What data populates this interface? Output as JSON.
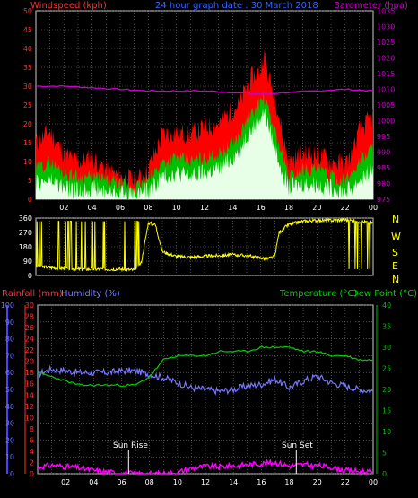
{
  "header": {
    "windspeed": "Windspeed (kph)",
    "title": "24 hour graph date : 30 March 2018",
    "barometer": "Barometer (hpa)"
  },
  "lower_header": {
    "rainfall": "Rainfall (mm)",
    "humidity": "Humidity (%)",
    "temperature": "Temperature (°C)",
    "dewpoint": "Dew Point (°C)"
  },
  "annotations": {
    "sunrise": "Sun Rise",
    "sunset": "Sun Set"
  },
  "compass": [
    "N",
    "W",
    "S",
    "E",
    "N"
  ],
  "colors": {
    "wind_gust": "#ff0000",
    "wind_avg": "#00c000",
    "wind_speed": "#e6ffe6",
    "barometer": "#cc00cc",
    "direction": "#ffff00",
    "humidity": "#7777ff",
    "temperature": "#00d000",
    "dewpoint": "#00d000",
    "rainfall": "#ff00ff",
    "axis_left": "#ff3030",
    "axis_right": "#cc00cc",
    "grid": "#777777"
  },
  "chart_data": [
    {
      "type": "line",
      "name": "wind",
      "x_ticks": [
        "02",
        "04",
        "06",
        "08",
        "10",
        "12",
        "14",
        "16",
        "18",
        "20",
        "22",
        "00"
      ],
      "y_left": {
        "label": "Windspeed (kph)",
        "range": [
          0,
          50
        ],
        "ticks": [
          0,
          5,
          10,
          15,
          20,
          25,
          30,
          35,
          40,
          45,
          50
        ]
      },
      "y_right": {
        "label": "Barometer (hpa)",
        "range": [
          975,
          1035
        ],
        "ticks": [
          975,
          980,
          985,
          990,
          995,
          1000,
          1005,
          1010,
          1015,
          1020,
          1025,
          1030,
          1035
        ]
      },
      "series": [
        {
          "name": "gust",
          "x": [
            0,
            1,
            2,
            3,
            4,
            5,
            6,
            7,
            7.5,
            8,
            9,
            10,
            11,
            12,
            13,
            14,
            14.5,
            15,
            15.5,
            16,
            16.2,
            16.5,
            17,
            17.5,
            18,
            19,
            20,
            21,
            22,
            22.5,
            23,
            24
          ],
          "y": [
            15,
            18,
            12,
            10,
            11,
            8,
            6,
            5,
            6,
            8,
            17,
            18,
            17,
            19,
            20,
            24,
            25,
            30,
            33,
            34,
            39,
            33,
            28,
            18,
            10,
            12,
            12,
            10,
            9,
            12,
            18,
            22
          ]
        },
        {
          "name": "average",
          "x": [
            0,
            1,
            2,
            3,
            4,
            5,
            6,
            7,
            7.5,
            8,
            9,
            10,
            11,
            12,
            13,
            14,
            14.5,
            15,
            15.5,
            16,
            16.2,
            16.5,
            17,
            17.5,
            18,
            19,
            20,
            21,
            22,
            22.5,
            23,
            24
          ],
          "y": [
            8,
            10,
            7,
            6,
            6,
            5,
            4,
            3,
            4,
            5,
            10,
            11,
            10,
            11,
            12,
            15,
            17,
            21,
            23,
            26,
            27,
            24,
            18,
            12,
            6,
            8,
            8,
            6,
            5,
            7,
            10,
            14
          ]
        },
        {
          "name": "speed",
          "x": [
            0,
            1,
            2,
            3,
            4,
            5,
            6,
            7,
            7.5,
            8,
            9,
            10,
            11,
            12,
            13,
            14,
            14.5,
            15,
            15.5,
            16,
            16.2,
            16.5,
            17,
            17.5,
            18,
            19,
            20,
            21,
            22,
            22.5,
            23,
            24
          ],
          "y": [
            4,
            5,
            3,
            2,
            3,
            2,
            2,
            1,
            2,
            2,
            6,
            7,
            6,
            7,
            8,
            11,
            13,
            17,
            19,
            22,
            23,
            20,
            14,
            8,
            3,
            4,
            4,
            3,
            2,
            3,
            5,
            8
          ]
        },
        {
          "name": "barometer",
          "x": [
            0,
            2,
            4,
            6,
            8,
            10,
            12,
            14,
            16,
            18,
            20,
            22,
            24
          ],
          "y": [
            1011,
            1011,
            1010.5,
            1010,
            1009.5,
            1009.5,
            1009.5,
            1009,
            1008.5,
            1009,
            1009.5,
            1010,
            1009.5
          ]
        }
      ]
    },
    {
      "type": "line",
      "name": "direction",
      "y_left": {
        "range": [
          0,
          360
        ],
        "ticks": [
          0,
          90,
          180,
          270,
          360
        ]
      },
      "series": [
        {
          "name": "direction",
          "x": [
            0,
            1,
            2,
            3,
            4,
            5,
            6,
            7,
            7.5,
            8,
            8.5,
            9,
            10,
            11,
            12,
            13,
            14,
            15,
            16,
            16.5,
            17,
            17.3,
            18,
            19,
            20,
            21,
            22,
            23,
            24
          ],
          "y": [
            60,
            50,
            45,
            40,
            40,
            40,
            40,
            35,
            80,
            330,
            320,
            150,
            120,
            115,
            120,
            125,
            130,
            125,
            110,
            105,
            120,
            270,
            320,
            340,
            345,
            345,
            350,
            340,
            330
          ]
        }
      ]
    },
    {
      "type": "line",
      "name": "humidity_temperature",
      "y_left_rain": {
        "label": "Rainfall (mm)",
        "range": [
          0,
          30
        ],
        "ticks": [
          0,
          2,
          4,
          6,
          8,
          10,
          12,
          14,
          16,
          18,
          20,
          22,
          24,
          26,
          28,
          30
        ]
      },
      "y_left_humidity": {
        "label": "Humidity (%)",
        "range": [
          0,
          100
        ],
        "ticks": [
          0,
          10,
          20,
          30,
          40,
          50,
          60,
          70,
          80,
          90,
          100
        ]
      },
      "y_right": {
        "label": "Temperature (°C) Dew Point (°C)",
        "range": [
          0,
          40
        ],
        "ticks": [
          0,
          5,
          10,
          15,
          20,
          25,
          30,
          35,
          40
        ]
      },
      "series": [
        {
          "name": "humidity",
          "x": [
            0,
            1,
            2,
            3,
            4,
            5,
            6,
            7,
            8,
            9,
            10,
            11,
            12,
            13,
            14,
            15,
            16,
            17,
            18,
            19,
            20,
            21,
            22,
            23,
            24
          ],
          "y": [
            59,
            62,
            61,
            60,
            60,
            60,
            61,
            61,
            59,
            57,
            54,
            51,
            50,
            49,
            50,
            52,
            53,
            56,
            51,
            55,
            58,
            54,
            52,
            50,
            49
          ]
        },
        {
          "name": "temperature",
          "x": [
            0,
            1,
            2,
            3,
            4,
            5,
            6,
            7,
            8,
            9,
            10,
            11,
            12,
            13,
            14,
            15,
            16,
            17,
            18,
            19,
            20,
            21,
            22,
            23,
            24
          ],
          "y": [
            24,
            23,
            22,
            21,
            21,
            21,
            21,
            21,
            23,
            27,
            28,
            28,
            28,
            29,
            29,
            29,
            30,
            30,
            30,
            29,
            29,
            28,
            28,
            27,
            27
          ]
        },
        {
          "name": "rainfall",
          "x": [
            0,
            1,
            2,
            3,
            4,
            5,
            6,
            7,
            8,
            9,
            10,
            11,
            12,
            13,
            14,
            15,
            16,
            17,
            18,
            19,
            20,
            21,
            22,
            23,
            24
          ],
          "y": [
            1.2,
            1.5,
            1.3,
            1,
            0.6,
            0.3,
            0.1,
            0,
            0,
            0,
            0.2,
            1,
            1.3,
            1.2,
            1.4,
            1.6,
            1.8,
            2,
            1.4,
            1.6,
            1.4,
            1.2,
            0.6,
            0.4,
            0.3
          ]
        }
      ],
      "markers": [
        {
          "label": "Sun Rise",
          "x": 6.5
        },
        {
          "label": "Sun Set",
          "x": 18.5
        }
      ]
    }
  ]
}
